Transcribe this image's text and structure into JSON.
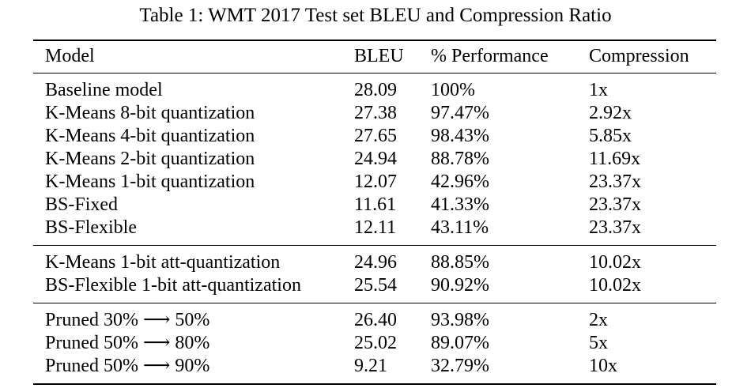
{
  "caption": "Table 1: WMT 2017 Test set BLEU and Compression Ratio",
  "colors": {
    "background": "#ffffff",
    "text": "#000000",
    "rule": "#000000"
  },
  "table": {
    "columns": [
      "Model",
      "BLEU",
      "% Performance",
      "Compression"
    ],
    "groups": [
      {
        "name": "quantization-and-binary-scaling",
        "rows": [
          [
            "Baseline model",
            "28.09",
            "100%",
            "1x"
          ],
          [
            "K-Means 8-bit quantization",
            "27.38",
            "97.47%",
            "2.92x"
          ],
          [
            "K-Means 4-bit quantization",
            "27.65",
            "98.43%",
            "5.85x"
          ],
          [
            "K-Means 2-bit quantization",
            "24.94",
            "88.78%",
            "11.69x"
          ],
          [
            "K-Means 1-bit quantization",
            "12.07",
            "42.96%",
            "23.37x"
          ],
          [
            "BS-Fixed",
            "11.61",
            "41.33%",
            "23.37x"
          ],
          [
            "BS-Flexible",
            "12.11",
            "43.11%",
            "23.37x"
          ]
        ]
      },
      {
        "name": "att-quantization",
        "rows": [
          [
            "K-Means 1-bit att-quantization",
            "24.96",
            "88.85%",
            "10.02x"
          ],
          [
            "BS-Flexible 1-bit att-quantization",
            "25.54",
            "90.92%",
            "10.02x"
          ]
        ]
      },
      {
        "name": "pruned",
        "rows": [
          [
            "Pruned 30% ⟶ 50%",
            "26.40",
            "93.98%",
            "2x"
          ],
          [
            "Pruned 50% ⟶ 80%",
            "25.02",
            "89.07%",
            "5x"
          ],
          [
            "Pruned 50% ⟶ 90%",
            "9.21",
            "32.79%",
            "10x"
          ]
        ]
      }
    ]
  }
}
